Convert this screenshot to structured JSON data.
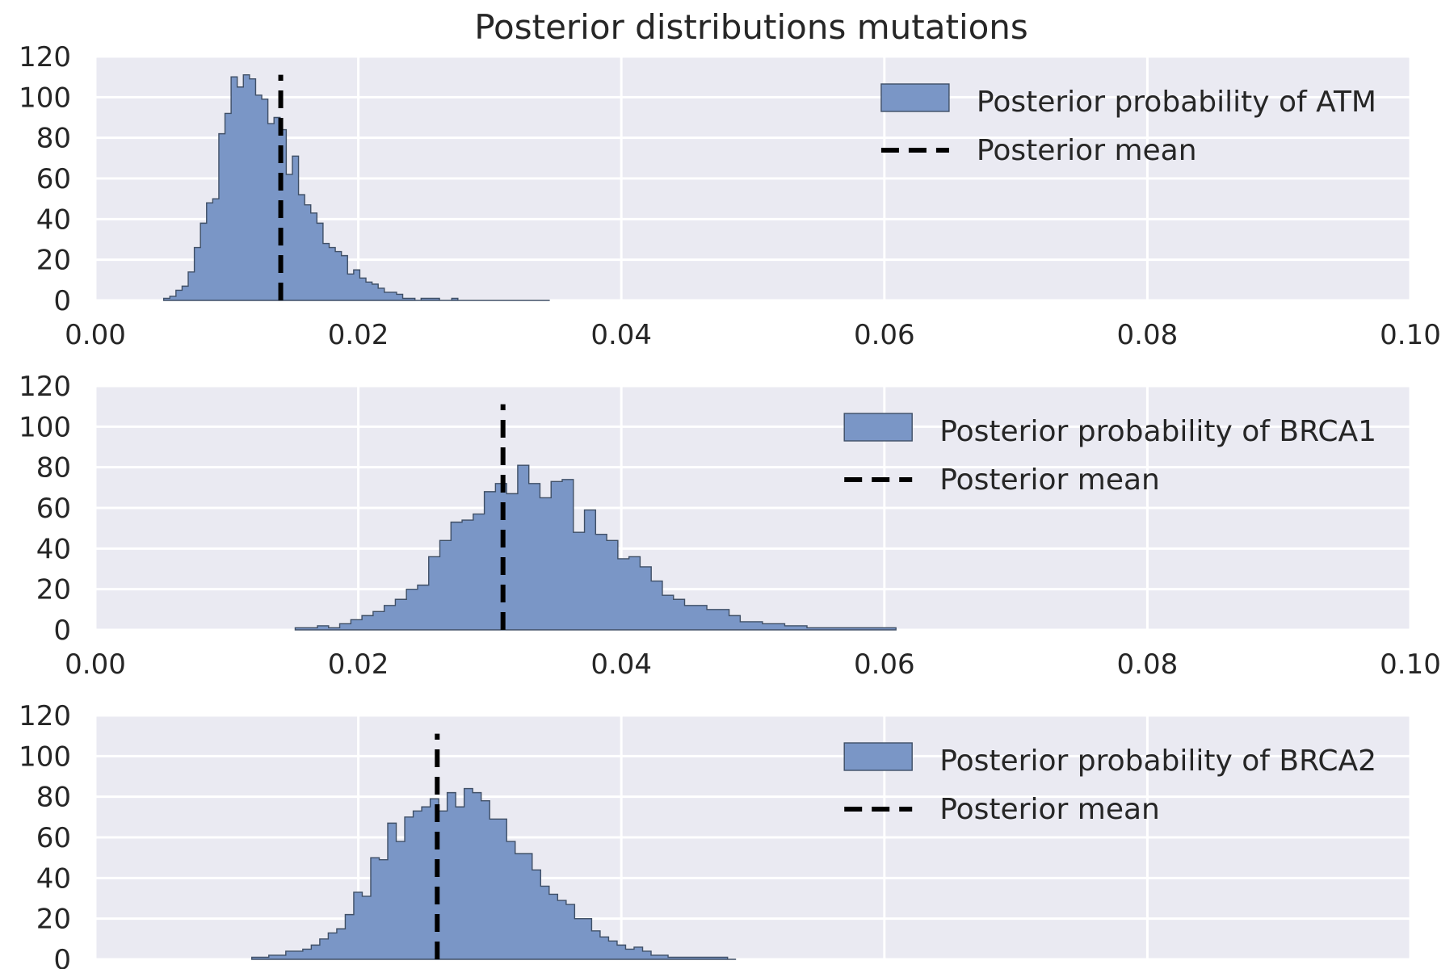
{
  "colors": {
    "panel_bg": "#EAEAF2",
    "grid": "#FFFFFF",
    "bar_fill": "#7A96C6",
    "bar_edge": "#3F4F66",
    "mean_line": "#000000",
    "text": "#262626"
  },
  "chart_data": [
    {
      "type": "bar",
      "title": "Posterior distributions mutations",
      "xlabel": "",
      "ylabel": "",
      "xlim": [
        0.0,
        0.1
      ],
      "ylim": [
        0,
        120
      ],
      "xticks": [
        "0.00",
        "0.02",
        "0.04",
        "0.06",
        "0.08",
        "0.10"
      ],
      "yticks": [
        "0",
        "20",
        "40",
        "60",
        "80",
        "100",
        "120"
      ],
      "bin_start": 0.0052,
      "bin_width": 0.000466,
      "series": [
        {
          "name": "Posterior probability of ATM",
          "values": [
            1,
            2,
            5,
            7,
            14,
            26,
            38,
            48,
            50,
            82,
            92,
            110,
            105,
            111,
            109,
            101,
            99,
            87,
            90,
            84,
            62,
            71,
            52,
            47,
            43,
            38,
            28,
            26,
            24,
            22,
            13,
            15,
            11,
            9,
            8,
            6,
            4,
            4,
            3,
            1,
            1,
            0,
            1,
            1,
            1,
            0,
            0,
            1,
            0,
            0,
            0,
            0,
            0,
            0,
            0,
            0,
            0,
            0,
            0,
            0,
            0,
            0,
            0
          ]
        },
        {
          "name": "Posterior mean",
          "kind": "vline",
          "x": 0.0141
        }
      ],
      "legend": "upper right",
      "grid": true
    },
    {
      "type": "bar",
      "xlabel": "",
      "ylabel": "",
      "xlim": [
        0.0,
        0.1
      ],
      "ylim": [
        0,
        120
      ],
      "xticks": [
        "0.00",
        "0.02",
        "0.04",
        "0.06",
        "0.08",
        "0.10"
      ],
      "yticks": [
        "0",
        "20",
        "40",
        "60",
        "80",
        "100",
        "120"
      ],
      "bin_start": 0.0152,
      "bin_width": 0.000846,
      "series": [
        {
          "name": "Posterior probability of BRCA1",
          "values": [
            1,
            1,
            2,
            1,
            3,
            5,
            7,
            9,
            12,
            15,
            20,
            22,
            36,
            44,
            53,
            54,
            57,
            68,
            72,
            67,
            81,
            72,
            65,
            73,
            74,
            48,
            59,
            47,
            44,
            35,
            36,
            31,
            24,
            17,
            15,
            12,
            12,
            10,
            10,
            7,
            4,
            4,
            3,
            3,
            2,
            2,
            1,
            1,
            1,
            1,
            1,
            1,
            1,
            1
          ]
        },
        {
          "name": "Posterior mean",
          "kind": "vline",
          "x": 0.031
        }
      ],
      "legend": "upper right",
      "grid": true
    },
    {
      "type": "bar",
      "xlabel": "",
      "ylabel": "",
      "xlim": [
        0.0,
        0.1
      ],
      "ylim": [
        0,
        120
      ],
      "xticks": [],
      "yticks": [
        "0",
        "20",
        "40",
        "60",
        "80",
        "100",
        "120"
      ],
      "bin_start": 0.0119,
      "bin_width": 0.000646,
      "series": [
        {
          "name": "Posterior probability of BRCA2",
          "values": [
            1,
            1,
            2,
            2,
            4,
            4,
            5,
            7,
            10,
            13,
            15,
            22,
            33,
            31,
            50,
            49,
            67,
            58,
            70,
            73,
            75,
            79,
            73,
            82,
            75,
            84,
            82,
            78,
            69,
            69,
            58,
            52,
            52,
            44,
            36,
            32,
            29,
            27,
            20,
            20,
            14,
            11,
            9,
            7,
            5,
            6,
            4,
            2,
            2,
            1,
            1,
            1,
            1,
            1,
            1,
            1,
            0
          ]
        },
        {
          "name": "Posterior mean",
          "kind": "vline",
          "x": 0.026
        }
      ],
      "legend": "upper right",
      "grid": true
    }
  ]
}
